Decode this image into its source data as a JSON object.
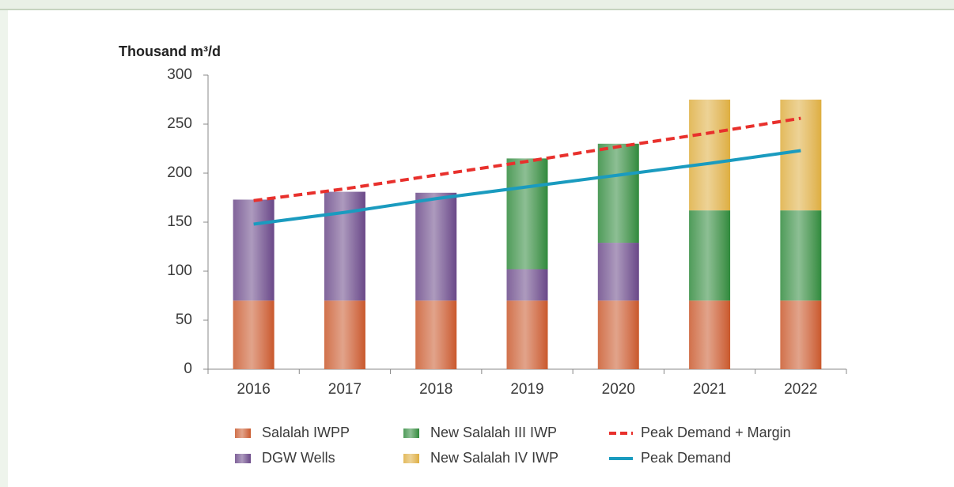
{
  "chart_data": {
    "type": "bar",
    "y_label": "Thousand m³/d",
    "categories": [
      "2016",
      "2017",
      "2018",
      "2019",
      "2020",
      "2021",
      "2022"
    ],
    "series": [
      {
        "name": "Salalah IWPP",
        "type": "bar",
        "color": "#c9582b",
        "values": [
          70,
          70,
          70,
          70,
          70,
          70,
          70
        ]
      },
      {
        "name": "DGW Wells",
        "type": "bar",
        "color": "#6a4888",
        "values": [
          103,
          111,
          110,
          32,
          59,
          null,
          null
        ]
      },
      {
        "name": "New Salalah III IWP",
        "type": "bar",
        "color": "#2f8a3c",
        "values": [
          null,
          null,
          null,
          113,
          101,
          92,
          92
        ]
      },
      {
        "name": "New Salalah IV IWP",
        "type": "bar",
        "color": "#deae3f",
        "values": [
          null,
          null,
          null,
          null,
          null,
          113,
          113
        ]
      },
      {
        "name": "Peak Demand + Margin",
        "type": "line",
        "dashed": true,
        "color": "#e8302c",
        "values": [
          172,
          184,
          198,
          212,
          227,
          241,
          256
        ]
      },
      {
        "name": "Peak Demand",
        "type": "line",
        "dashed": false,
        "color": "#1a9bbf",
        "values": [
          148,
          160,
          174,
          186,
          198,
          210,
          223
        ]
      }
    ],
    "legend_order": [
      0,
      2,
      4,
      1,
      3,
      5
    ],
    "ylim": [
      0,
      300
    ],
    "yticks": [
      0,
      50,
      100,
      150,
      200,
      250,
      300
    ]
  }
}
